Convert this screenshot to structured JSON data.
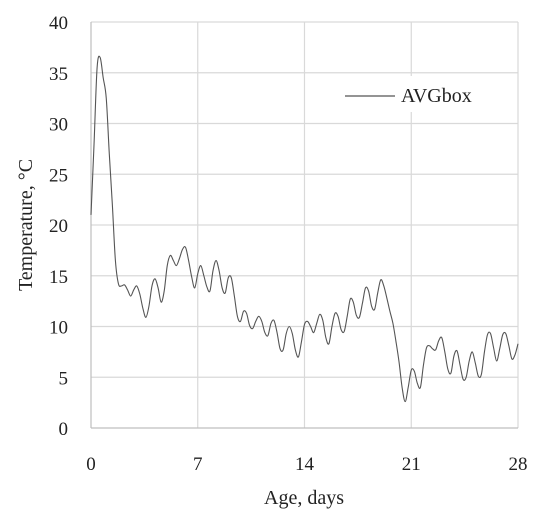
{
  "chart_data": {
    "type": "line",
    "title": "",
    "xlabel": "Age, days",
    "ylabel": "Temperature, °C",
    "xlim": [
      0,
      28
    ],
    "ylim": [
      0,
      40
    ],
    "x_ticks": [
      0,
      7,
      14,
      21,
      28
    ],
    "y_ticks": [
      0,
      5,
      10,
      15,
      20,
      25,
      30,
      35,
      40
    ],
    "grid": true,
    "legend_position": "top-right",
    "series_color": "#555555",
    "series": [
      {
        "name": "AVGbox",
        "points": [
          [
            0.0,
            21.0
          ],
          [
            0.2,
            28.0
          ],
          [
            0.4,
            35.5
          ],
          [
            0.6,
            36.5
          ],
          [
            0.8,
            34.5
          ],
          [
            1.0,
            32.5
          ],
          [
            1.2,
            27.0
          ],
          [
            1.4,
            22.0
          ],
          [
            1.6,
            16.5
          ],
          [
            1.8,
            14.2
          ],
          [
            2.0,
            14.0
          ],
          [
            2.2,
            14.1
          ],
          [
            2.4,
            13.6
          ],
          [
            2.6,
            13.0
          ],
          [
            2.8,
            13.6
          ],
          [
            3.0,
            14.0
          ],
          [
            3.2,
            13.2
          ],
          [
            3.4,
            11.8
          ],
          [
            3.6,
            10.9
          ],
          [
            3.8,
            12.0
          ],
          [
            4.0,
            14.0
          ],
          [
            4.2,
            14.7
          ],
          [
            4.4,
            13.8
          ],
          [
            4.6,
            12.4
          ],
          [
            4.8,
            13.5
          ],
          [
            5.0,
            16.0
          ],
          [
            5.2,
            17.0
          ],
          [
            5.4,
            16.5
          ],
          [
            5.6,
            16.0
          ],
          [
            5.8,
            16.7
          ],
          [
            6.0,
            17.6
          ],
          [
            6.2,
            17.8
          ],
          [
            6.4,
            16.5
          ],
          [
            6.6,
            14.9
          ],
          [
            6.8,
            13.8
          ],
          [
            7.0,
            15.2
          ],
          [
            7.2,
            16.0
          ],
          [
            7.4,
            15.0
          ],
          [
            7.6,
            13.9
          ],
          [
            7.8,
            13.5
          ],
          [
            8.0,
            15.5
          ],
          [
            8.2,
            16.5
          ],
          [
            8.4,
            15.5
          ],
          [
            8.6,
            13.8
          ],
          [
            8.8,
            13.3
          ],
          [
            9.0,
            14.8
          ],
          [
            9.2,
            14.8
          ],
          [
            9.4,
            13.0
          ],
          [
            9.6,
            11.0
          ],
          [
            9.8,
            10.5
          ],
          [
            10.0,
            11.5
          ],
          [
            10.2,
            11.3
          ],
          [
            10.4,
            10.1
          ],
          [
            10.6,
            9.8
          ],
          [
            10.8,
            10.5
          ],
          [
            11.0,
            11.0
          ],
          [
            11.2,
            10.5
          ],
          [
            11.4,
            9.4
          ],
          [
            11.6,
            9.1
          ],
          [
            11.8,
            10.3
          ],
          [
            12.0,
            10.6
          ],
          [
            12.2,
            9.4
          ],
          [
            12.4,
            7.8
          ],
          [
            12.6,
            7.7
          ],
          [
            12.8,
            9.3
          ],
          [
            13.0,
            10.0
          ],
          [
            13.2,
            9.3
          ],
          [
            13.4,
            7.7
          ],
          [
            13.6,
            7.0
          ],
          [
            13.8,
            8.5
          ],
          [
            14.0,
            10.2
          ],
          [
            14.2,
            10.5
          ],
          [
            14.4,
            10.0
          ],
          [
            14.6,
            9.4
          ],
          [
            14.8,
            10.3
          ],
          [
            15.0,
            11.2
          ],
          [
            15.2,
            10.6
          ],
          [
            15.4,
            8.9
          ],
          [
            15.6,
            8.3
          ],
          [
            15.8,
            10.0
          ],
          [
            16.0,
            11.3
          ],
          [
            16.2,
            11.0
          ],
          [
            16.4,
            9.7
          ],
          [
            16.6,
            9.5
          ],
          [
            16.8,
            11.0
          ],
          [
            17.0,
            12.7
          ],
          [
            17.2,
            12.4
          ],
          [
            17.4,
            11.1
          ],
          [
            17.6,
            10.9
          ],
          [
            17.8,
            12.3
          ],
          [
            18.0,
            13.8
          ],
          [
            18.2,
            13.5
          ],
          [
            18.4,
            12.0
          ],
          [
            18.6,
            11.7
          ],
          [
            18.8,
            13.3
          ],
          [
            19.0,
            14.6
          ],
          [
            19.2,
            14.0
          ],
          [
            19.4,
            12.8
          ],
          [
            19.6,
            11.5
          ],
          [
            19.8,
            10.3
          ],
          [
            20.0,
            8.5
          ],
          [
            20.2,
            6.5
          ],
          [
            20.4,
            4.0
          ],
          [
            20.6,
            2.6
          ],
          [
            20.8,
            4.0
          ],
          [
            21.0,
            5.7
          ],
          [
            21.2,
            5.6
          ],
          [
            21.4,
            4.4
          ],
          [
            21.6,
            4.0
          ],
          [
            21.8,
            6.2
          ],
          [
            22.0,
            7.9
          ],
          [
            22.2,
            8.1
          ],
          [
            22.4,
            7.8
          ],
          [
            22.6,
            7.7
          ],
          [
            22.8,
            8.6
          ],
          [
            23.0,
            8.9
          ],
          [
            23.2,
            7.5
          ],
          [
            23.4,
            5.8
          ],
          [
            23.6,
            5.4
          ],
          [
            23.8,
            7.1
          ],
          [
            24.0,
            7.6
          ],
          [
            24.2,
            6.2
          ],
          [
            24.4,
            4.8
          ],
          [
            24.6,
            5.0
          ],
          [
            24.8,
            6.6
          ],
          [
            25.0,
            7.5
          ],
          [
            25.2,
            6.4
          ],
          [
            25.4,
            5.1
          ],
          [
            25.6,
            5.3
          ],
          [
            25.8,
            7.5
          ],
          [
            26.0,
            9.2
          ],
          [
            26.2,
            9.3
          ],
          [
            26.4,
            7.9
          ],
          [
            26.6,
            6.6
          ],
          [
            26.8,
            7.8
          ],
          [
            27.0,
            9.2
          ],
          [
            27.2,
            9.3
          ],
          [
            27.4,
            8.1
          ],
          [
            27.6,
            6.8
          ],
          [
            27.8,
            7.2
          ],
          [
            28.0,
            8.3
          ]
        ]
      }
    ]
  }
}
